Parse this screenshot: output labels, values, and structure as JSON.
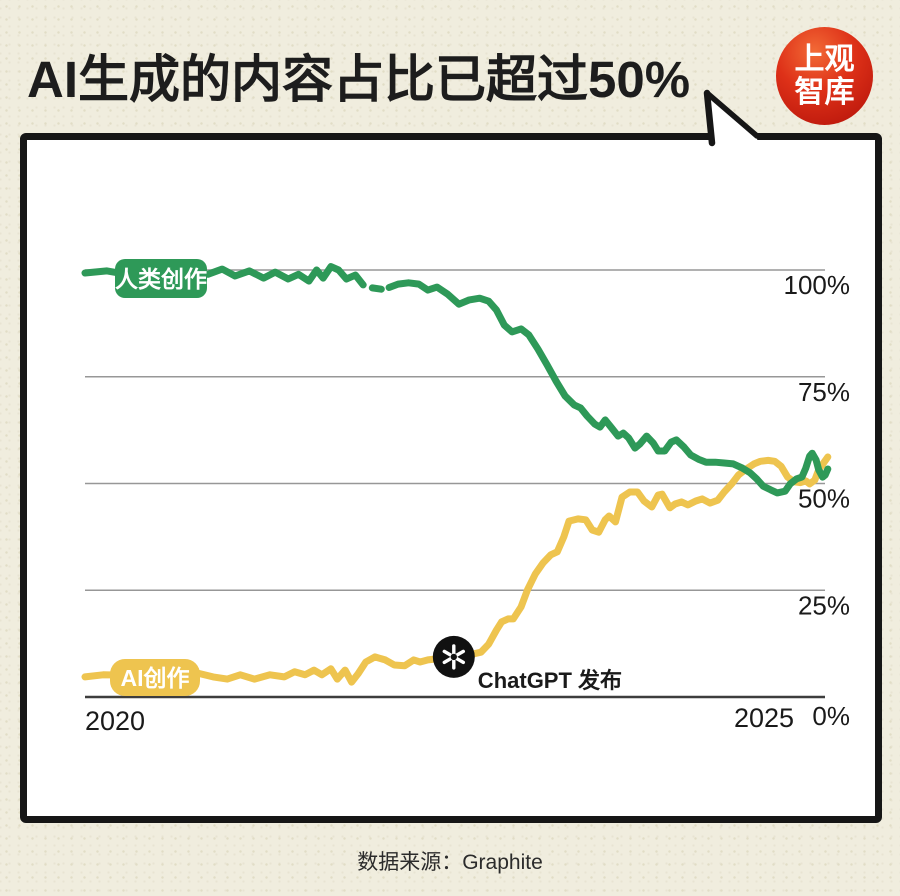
{
  "page": {
    "title": "AI生成的内容占比已超过50%",
    "source": "数据来源：Graphite",
    "logo": {
      "line1": "上观",
      "line2": "智库"
    }
  },
  "colors": {
    "human_green": "#2e9958",
    "ai_yellow": "#eec44f",
    "background": "#f0edde",
    "card": "#ffffff",
    "logo_red": "#c8190f",
    "grid_gray": "#979797",
    "axis_dark": "#3d3d3d",
    "text_black": "#1a1a1a"
  },
  "chart_data": {
    "type": "line",
    "title": "AI生成的内容占比已超过50%",
    "xlabel": "",
    "ylabel": "",
    "x_axis": {
      "range": [
        2020,
        2025.75
      ],
      "ticks": [
        {
          "label": "2020"
        },
        {
          "label": "2025"
        }
      ]
    },
    "y_axis": {
      "range": [
        0,
        100
      ],
      "unit": "%",
      "ticks": [
        {
          "pct": 0,
          "label": "0%"
        },
        {
          "pct": 25,
          "label": "25%"
        },
        {
          "pct": 50,
          "label": "50%"
        },
        {
          "pct": 75,
          "label": "75%"
        },
        {
          "pct": 100,
          "label": "100%"
        }
      ]
    },
    "legend_position": "on-line-pills",
    "grid": true,
    "annotation": {
      "label": "ChatGPT 发布",
      "x": 2022.83,
      "y": 9.4,
      "marker": "openai-logo"
    },
    "series": [
      {
        "name": "人类创作",
        "slug": "human-creation",
        "color": "#2e9958",
        "segments": [
          [
            [
              2019.98,
              99.3
            ],
            [
              2020.15,
              99.8
            ],
            [
              2020.3,
              99.0
            ],
            [
              2020.46,
              99.5
            ],
            [
              2020.62,
              99.0
            ],
            [
              2020.77,
              99.8
            ],
            [
              2020.93,
              99.0
            ],
            [
              2021.04,
              100.2
            ],
            [
              2021.14,
              98.6
            ],
            [
              2021.25,
              99.8
            ],
            [
              2021.36,
              98.1
            ],
            [
              2021.45,
              99.5
            ],
            [
              2021.55,
              97.9
            ],
            [
              2021.63,
              99.0
            ],
            [
              2021.71,
              97.4
            ],
            [
              2021.77,
              100.0
            ],
            [
              2021.82,
              98.1
            ],
            [
              2021.88,
              100.8
            ],
            [
              2021.94,
              100.0
            ],
            [
              2022.0,
              97.9
            ],
            [
              2022.07,
              98.8
            ],
            [
              2022.13,
              96.5
            ]
          ],
          [
            [
              2022.2,
              95.8
            ],
            [
              2022.27,
              95.5
            ]
          ],
          [
            [
              2022.33,
              95.9
            ],
            [
              2022.4,
              96.7
            ],
            [
              2022.48,
              97.0
            ],
            [
              2022.56,
              96.7
            ],
            [
              2022.63,
              95.3
            ],
            [
              2022.7,
              96.0
            ],
            [
              2022.78,
              94.4
            ],
            [
              2022.87,
              92.0
            ],
            [
              2022.95,
              93.0
            ],
            [
              2023.03,
              93.4
            ],
            [
              2023.1,
              92.7
            ],
            [
              2023.16,
              90.6
            ],
            [
              2023.22,
              87.1
            ],
            [
              2023.28,
              85.5
            ],
            [
              2023.35,
              86.2
            ],
            [
              2023.41,
              84.8
            ],
            [
              2023.48,
              81.5
            ],
            [
              2023.55,
              77.8
            ],
            [
              2023.62,
              74.0
            ],
            [
              2023.69,
              70.5
            ],
            [
              2023.76,
              68.4
            ],
            [
              2023.81,
              67.7
            ],
            [
              2023.86,
              65.8
            ],
            [
              2023.92,
              63.9
            ],
            [
              2023.96,
              63.2
            ],
            [
              2024.0,
              64.9
            ],
            [
              2024.05,
              63.0
            ],
            [
              2024.1,
              61.1
            ],
            [
              2024.14,
              61.8
            ],
            [
              2024.18,
              60.7
            ],
            [
              2024.23,
              58.3
            ],
            [
              2024.27,
              59.3
            ],
            [
              2024.32,
              61.1
            ],
            [
              2024.37,
              59.5
            ],
            [
              2024.41,
              57.6
            ],
            [
              2024.46,
              57.6
            ],
            [
              2024.51,
              59.7
            ],
            [
              2024.55,
              60.2
            ],
            [
              2024.61,
              58.5
            ],
            [
              2024.66,
              56.7
            ],
            [
              2024.72,
              55.7
            ],
            [
              2024.78,
              55.0
            ],
            [
              2024.85,
              55.0
            ],
            [
              2024.92,
              54.8
            ],
            [
              2024.99,
              54.6
            ],
            [
              2025.06,
              53.6
            ],
            [
              2025.12,
              52.5
            ],
            [
              2025.17,
              51.1
            ],
            [
              2025.22,
              49.4
            ],
            [
              2025.28,
              48.5
            ],
            [
              2025.33,
              47.8
            ],
            [
              2025.39,
              48.2
            ],
            [
              2025.43,
              49.9
            ],
            [
              2025.48,
              51.1
            ],
            [
              2025.52,
              51.5
            ],
            [
              2025.55,
              53.6
            ],
            [
              2025.58,
              56.4
            ],
            [
              2025.6,
              57.1
            ],
            [
              2025.63,
              55.5
            ],
            [
              2025.65,
              53.2
            ],
            [
              2025.68,
              51.5
            ],
            [
              2025.7,
              52.0
            ],
            [
              2025.72,
              53.4
            ]
          ]
        ]
      },
      {
        "name": "AI创作",
        "slug": "ai-creation",
        "color": "#eec44f",
        "segments": [
          [
            [
              2019.98,
              4.7
            ],
            [
              2020.12,
              5.2
            ],
            [
              2020.5,
              5.0
            ],
            [
              2020.85,
              5.6
            ],
            [
              2020.97,
              4.7
            ],
            [
              2021.08,
              4.2
            ],
            [
              2021.18,
              5.2
            ],
            [
              2021.29,
              4.2
            ],
            [
              2021.41,
              5.2
            ],
            [
              2021.52,
              4.7
            ],
            [
              2021.6,
              5.9
            ],
            [
              2021.68,
              5.2
            ],
            [
              2021.75,
              6.3
            ],
            [
              2021.81,
              5.2
            ],
            [
              2021.88,
              6.6
            ],
            [
              2021.93,
              4.2
            ],
            [
              2021.99,
              6.3
            ],
            [
              2022.04,
              3.5
            ],
            [
              2022.09,
              5.4
            ],
            [
              2022.15,
              8.2
            ],
            [
              2022.22,
              9.4
            ],
            [
              2022.3,
              8.7
            ],
            [
              2022.37,
              7.5
            ],
            [
              2022.45,
              7.3
            ],
            [
              2022.52,
              8.7
            ],
            [
              2022.57,
              8.2
            ],
            [
              2022.63,
              8.7
            ],
            [
              2022.83,
              9.4
            ],
            [
              2022.98,
              10.1
            ],
            [
              2023.04,
              10.5
            ],
            [
              2023.1,
              12.4
            ],
            [
              2023.16,
              15.7
            ],
            [
              2023.2,
              17.6
            ],
            [
              2023.25,
              18.3
            ],
            [
              2023.29,
              18.3
            ],
            [
              2023.35,
              21.1
            ],
            [
              2023.4,
              25.1
            ],
            [
              2023.46,
              28.8
            ],
            [
              2023.52,
              31.4
            ],
            [
              2023.58,
              33.3
            ],
            [
              2023.63,
              34.0
            ],
            [
              2023.68,
              37.5
            ],
            [
              2023.72,
              41.2
            ],
            [
              2023.79,
              41.7
            ],
            [
              2023.85,
              41.5
            ],
            [
              2023.9,
              39.1
            ],
            [
              2023.95,
              38.6
            ],
            [
              2024.0,
              41.5
            ],
            [
              2024.03,
              42.4
            ],
            [
              2024.08,
              41.0
            ],
            [
              2024.13,
              46.8
            ],
            [
              2024.19,
              48.0
            ],
            [
              2024.25,
              48.0
            ],
            [
              2024.3,
              45.9
            ],
            [
              2024.36,
              44.5
            ],
            [
              2024.41,
              47.3
            ],
            [
              2024.44,
              47.5
            ],
            [
              2024.5,
              44.3
            ],
            [
              2024.54,
              45.2
            ],
            [
              2024.59,
              45.7
            ],
            [
              2024.64,
              45.0
            ],
            [
              2024.7,
              45.9
            ],
            [
              2024.75,
              46.4
            ],
            [
              2024.81,
              45.4
            ],
            [
              2024.87,
              46.1
            ],
            [
              2024.92,
              48.0
            ],
            [
              2024.98,
              50.0
            ],
            [
              2025.03,
              52.0
            ],
            [
              2025.09,
              53.4
            ],
            [
              2025.15,
              54.6
            ],
            [
              2025.2,
              55.2
            ],
            [
              2025.26,
              55.4
            ],
            [
              2025.31,
              55.2
            ],
            [
              2025.36,
              54.0
            ],
            [
              2025.41,
              51.5
            ],
            [
              2025.46,
              50.4
            ],
            [
              2025.51,
              50.2
            ],
            [
              2025.55,
              50.6
            ],
            [
              2025.58,
              49.9
            ],
            [
              2025.62,
              50.8
            ],
            [
              2025.65,
              53.2
            ],
            [
              2025.68,
              54.5
            ],
            [
              2025.72,
              56.2
            ]
          ]
        ]
      }
    ]
  }
}
